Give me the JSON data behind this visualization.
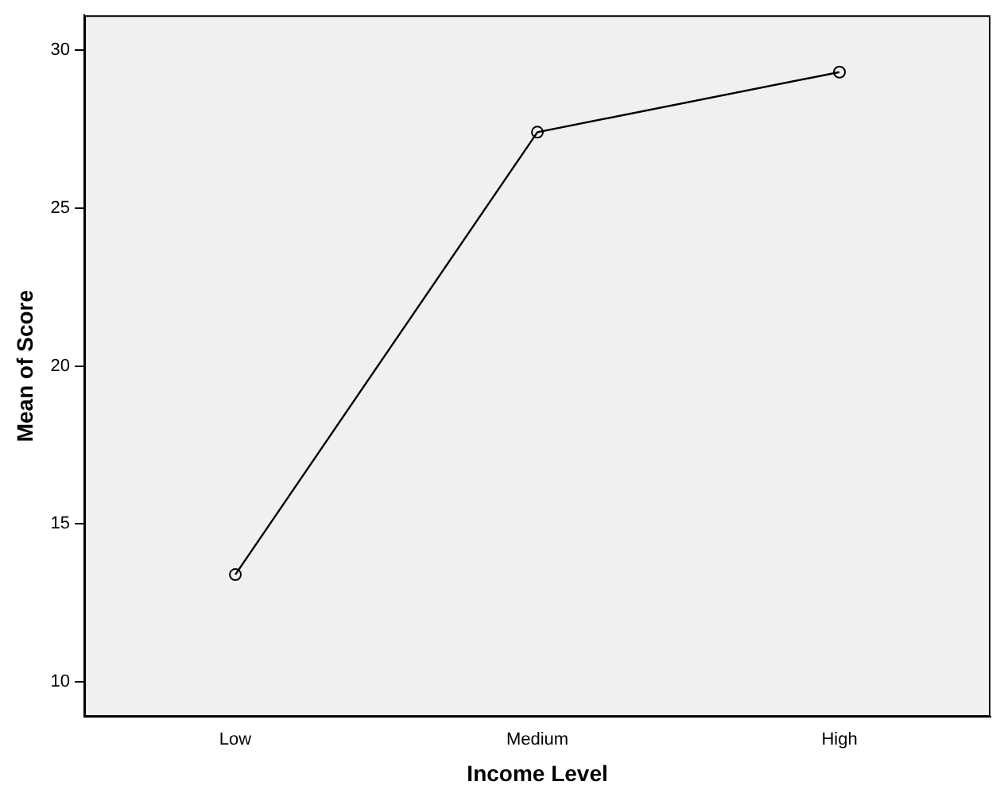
{
  "chart_data": {
    "type": "line",
    "xlabel": "Income Level",
    "ylabel": "Mean of Score",
    "categories": [
      "Low",
      "Medium",
      "High"
    ],
    "series": [
      {
        "color": "#000000",
        "values": [
          13.4,
          27.4,
          29.3
        ]
      }
    ],
    "ylim": [
      8.9,
      31.1
    ],
    "yticks": [
      10,
      15,
      20,
      25,
      30
    ],
    "grid": false,
    "legend": false,
    "marker": "circle",
    "line_style": "solid"
  }
}
